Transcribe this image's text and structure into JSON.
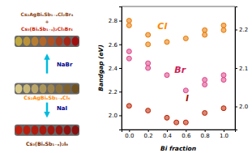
{
  "chart_data": {
    "type": "scatter",
    "xlabel": "Bi fraction",
    "ylabel": "Bandgap (eV)",
    "xlim": [
      -0.08,
      1.12
    ],
    "ylim": [
      1.88,
      2.92
    ],
    "y2lim": [
      1.94,
      2.26
    ],
    "xticks": [
      {
        "value": 0.0,
        "label": "0.0"
      },
      0.2,
      0.4,
      0.6,
      0.8,
      {
        "value": 1.0,
        "label": "1.0"
      }
    ],
    "yticks": [
      {
        "value": 2.0,
        "label": "2.0"
      },
      2.2,
      2.4,
      2.6,
      2.8
    ],
    "y2ticks": [
      {
        "value": 2.0,
        "label": "2.0"
      },
      2.1,
      2.2
    ],
    "series": [
      {
        "color": "#E87800",
        "marker": "circle",
        "x": [
          0.0,
          0.0,
          0.2,
          0.2,
          0.4,
          0.6,
          0.8,
          0.8,
          1.0,
          1.0
        ],
        "values": [
          2.8,
          2.76,
          2.68,
          2.6,
          2.62,
          2.65,
          2.72,
          2.68,
          2.76,
          2.72
        ]
      },
      {
        "color": "#DD4488",
        "marker": "circle",
        "x": [
          0.0,
          0.0,
          0.2,
          0.2,
          0.4,
          0.6,
          0.8,
          0.8,
          1.0,
          1.0
        ],
        "values": [
          2.54,
          2.48,
          2.44,
          2.4,
          2.34,
          2.21,
          2.3,
          2.26,
          2.34,
          2.3
        ]
      },
      {
        "color": "#BB2200",
        "marker": "circle",
        "x": [
          0.0,
          0.2,
          0.4,
          0.5,
          0.6,
          0.8,
          1.0
        ],
        "values": [
          2.08,
          2.04,
          1.98,
          1.94,
          1.94,
          2.02,
          2.06
        ]
      }
    ],
    "annotations": [
      {
        "text": "Cl",
        "x": 0.3,
        "y": 2.73,
        "color": "#FF8800"
      },
      {
        "text": "Br",
        "x": 0.48,
        "y": 2.36,
        "color": "#CC2255"
      },
      {
        "text": "I",
        "x": 0.6,
        "y": 2.12,
        "color": "#991100"
      },
      {
        "text": "Cs₂AgBiₓSb₁₋ₓCl₂Br₄",
        "color": "#8B4513"
      },
      {
        "text": "+",
        "color": "#8B4513"
      },
      {
        "text": "Cs₃(BiₓSb₁₋ₓ)₂Cl₃Br₆",
        "color": "#CC2200"
      },
      {
        "text": "NaBr",
        "color": "#00008B"
      },
      {
        "text": "Cs₂AgBiₓSb₁₋ₓCl₆",
        "color": "#FF8800"
      },
      {
        "text": "NaI",
        "color": "#00008B"
      },
      {
        "text": "Cs₃(BiₓSb₁₋ₓ)₂I₉",
        "color": "#7B3000"
      }
    ]
  }
}
